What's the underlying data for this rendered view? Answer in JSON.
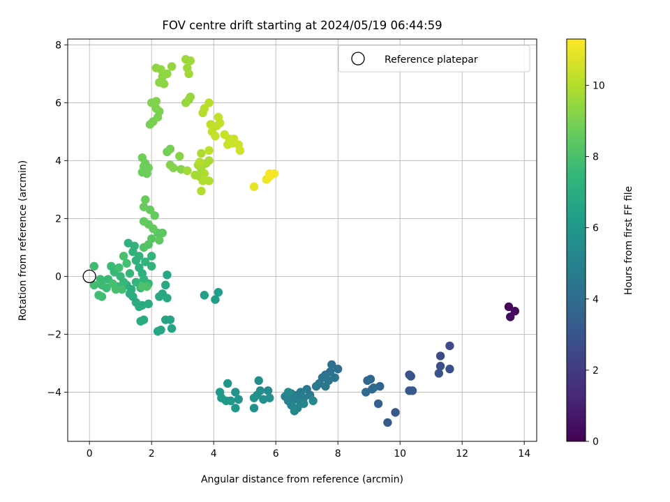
{
  "chart_data": {
    "type": "scatter",
    "title": "FOV centre drift starting at 2024/05/19 06:44:59",
    "xlabel": "Angular distance from reference (arcmin)",
    "ylabel": "Rotation from reference (arcmin)",
    "xlim": [
      -0.7,
      14.4
    ],
    "ylim": [
      -5.7,
      8.2
    ],
    "xticks": [
      0,
      2,
      4,
      6,
      8,
      10,
      12,
      14
    ],
    "yticks": [
      -4,
      -2,
      0,
      2,
      4,
      6,
      8
    ],
    "grid": true,
    "legend": {
      "placement": "top-right",
      "entries": [
        {
          "label": "Reference platepar",
          "marker": "open-circle"
        }
      ]
    },
    "reference_point": {
      "x": 0,
      "y": 0
    },
    "colorbar": {
      "label": "Hours from first FF file",
      "colormap": "viridis",
      "range": [
        0,
        11.3
      ],
      "ticks": [
        0,
        2,
        4,
        6,
        8,
        10
      ]
    },
    "series": [
      {
        "points": [
          {
            "x": 13.5,
            "y": -1.05,
            "t": 0.1
          },
          {
            "x": 13.7,
            "y": -1.2,
            "t": 0.3
          },
          {
            "x": 13.55,
            "y": -1.4,
            "t": 0.4
          },
          {
            "x": 11.6,
            "y": -2.4,
            "t": 2.5
          },
          {
            "x": 11.3,
            "y": -2.75,
            "t": 2.6
          },
          {
            "x": 11.3,
            "y": -3.1,
            "t": 2.7
          },
          {
            "x": 11.6,
            "y": -3.2,
            "t": 2.8
          },
          {
            "x": 11.25,
            "y": -3.35,
            "t": 2.9
          },
          {
            "x": 10.3,
            "y": -3.4,
            "t": 3.0
          },
          {
            "x": 10.35,
            "y": -3.45,
            "t": 3.0
          },
          {
            "x": 10.3,
            "y": -3.95,
            "t": 3.1
          },
          {
            "x": 10.4,
            "y": -3.95,
            "t": 3.15
          },
          {
            "x": 9.85,
            "y": -4.7,
            "t": 3.2
          },
          {
            "x": 9.6,
            "y": -5.05,
            "t": 3.3
          },
          {
            "x": 9.3,
            "y": -4.4,
            "t": 3.4
          },
          {
            "x": 9.35,
            "y": -3.8,
            "t": 3.6
          },
          {
            "x": 9.05,
            "y": -3.55,
            "t": 3.7
          },
          {
            "x": 8.95,
            "y": -3.6,
            "t": 3.75
          },
          {
            "x": 9.15,
            "y": -3.85,
            "t": 3.8
          },
          {
            "x": 8.9,
            "y": -4.0,
            "t": 3.9
          },
          {
            "x": 9.1,
            "y": -3.9,
            "t": 3.9
          },
          {
            "x": 8.0,
            "y": -3.2,
            "t": 4.1
          },
          {
            "x": 7.8,
            "y": -3.05,
            "t": 4.15
          },
          {
            "x": 7.75,
            "y": -3.3,
            "t": 4.2
          },
          {
            "x": 7.6,
            "y": -3.4,
            "t": 4.25
          },
          {
            "x": 7.9,
            "y": -3.5,
            "t": 4.3
          },
          {
            "x": 7.7,
            "y": -3.6,
            "t": 4.35
          },
          {
            "x": 7.5,
            "y": -3.5,
            "t": 4.4
          },
          {
            "x": 7.4,
            "y": -3.7,
            "t": 4.45
          },
          {
            "x": 7.6,
            "y": -3.8,
            "t": 4.5
          },
          {
            "x": 7.3,
            "y": -3.8,
            "t": 4.55
          },
          {
            "x": 7.0,
            "y": -3.9,
            "t": 4.6
          },
          {
            "x": 6.8,
            "y": -4.0,
            "t": 4.65
          },
          {
            "x": 7.1,
            "y": -4.1,
            "t": 4.7
          },
          {
            "x": 6.7,
            "y": -4.1,
            "t": 4.75
          },
          {
            "x": 6.9,
            "y": -4.2,
            "t": 4.8
          },
          {
            "x": 6.5,
            "y": -4.05,
            "t": 4.85
          },
          {
            "x": 6.6,
            "y": -4.25,
            "t": 4.9
          },
          {
            "x": 6.3,
            "y": -4.15,
            "t": 4.95
          },
          {
            "x": 6.4,
            "y": -4.3,
            "t": 5.0
          },
          {
            "x": 6.8,
            "y": -4.35,
            "t": 5.05
          },
          {
            "x": 6.5,
            "y": -4.45,
            "t": 5.1
          },
          {
            "x": 6.9,
            "y": -4.4,
            "t": 5.15
          },
          {
            "x": 6.7,
            "y": -4.55,
            "t": 5.2
          },
          {
            "x": 6.6,
            "y": -4.65,
            "t": 5.25
          },
          {
            "x": 7.2,
            "y": -4.3,
            "t": 5.3
          },
          {
            "x": 6.4,
            "y": -4.0,
            "t": 5.35
          },
          {
            "x": 5.75,
            "y": -3.95,
            "t": 5.4
          },
          {
            "x": 5.5,
            "y": -3.95,
            "t": 5.45
          },
          {
            "x": 5.45,
            "y": -3.6,
            "t": 5.5
          },
          {
            "x": 5.4,
            "y": -4.1,
            "t": 5.55
          },
          {
            "x": 5.6,
            "y": -4.25,
            "t": 5.6
          },
          {
            "x": 5.8,
            "y": -4.2,
            "t": 5.65
          },
          {
            "x": 5.3,
            "y": -4.55,
            "t": 5.7
          },
          {
            "x": 5.3,
            "y": -4.2,
            "t": 5.75
          },
          {
            "x": 4.8,
            "y": -4.25,
            "t": 5.8
          },
          {
            "x": 4.7,
            "y": -4.0,
            "t": 5.85
          },
          {
            "x": 4.45,
            "y": -3.7,
            "t": 5.9
          },
          {
            "x": 4.55,
            "y": -4.3,
            "t": 5.95
          },
          {
            "x": 4.7,
            "y": -4.55,
            "t": 6.0
          },
          {
            "x": 4.4,
            "y": -4.3,
            "t": 6.05
          },
          {
            "x": 4.2,
            "y": -4.0,
            "t": 6.1
          },
          {
            "x": 4.25,
            "y": -4.2,
            "t": 6.15
          },
          {
            "x": 4.15,
            "y": -0.55,
            "t": 6.3
          },
          {
            "x": 4.05,
            "y": -0.8,
            "t": 6.35
          },
          {
            "x": 3.7,
            "y": -0.65,
            "t": 6.4
          },
          {
            "x": 2.6,
            "y": -1.5,
            "t": 6.6
          },
          {
            "x": 2.65,
            "y": -1.8,
            "t": 6.62
          },
          {
            "x": 2.45,
            "y": -1.5,
            "t": 6.65
          },
          {
            "x": 2.3,
            "y": -1.85,
            "t": 6.68
          },
          {
            "x": 2.2,
            "y": -1.9,
            "t": 6.7
          },
          {
            "x": 2.5,
            "y": 0.05,
            "t": 6.75
          },
          {
            "x": 2.45,
            "y": -0.3,
            "t": 6.78
          },
          {
            "x": 2.35,
            "y": -0.6,
            "t": 6.8
          },
          {
            "x": 2.25,
            "y": -0.7,
            "t": 6.83
          },
          {
            "x": 2.5,
            "y": -0.75,
            "t": 6.85
          },
          {
            "x": 1.9,
            "y": -0.95,
            "t": 6.9
          },
          {
            "x": 1.7,
            "y": -1.0,
            "t": 6.92
          },
          {
            "x": 1.6,
            "y": -1.05,
            "t": 6.95
          },
          {
            "x": 1.75,
            "y": -1.5,
            "t": 6.97
          },
          {
            "x": 1.65,
            "y": -1.55,
            "t": 7.0
          },
          {
            "x": 1.4,
            "y": -0.7,
            "t": 7.02
          },
          {
            "x": 1.5,
            "y": -0.9,
            "t": 7.05
          },
          {
            "x": 1.3,
            "y": -0.6,
            "t": 7.08
          },
          {
            "x": 1.35,
            "y": -0.45,
            "t": 7.1
          },
          {
            "x": 1.2,
            "y": -0.3,
            "t": 7.12
          },
          {
            "x": 1.6,
            "y": 0.3,
            "t": 7.15
          },
          {
            "x": 1.7,
            "y": 0.1,
            "t": 7.18
          },
          {
            "x": 1.5,
            "y": 0.55,
            "t": 7.2
          },
          {
            "x": 1.4,
            "y": 0.85,
            "t": 7.22
          },
          {
            "x": 1.25,
            "y": 1.15,
            "t": 7.25
          },
          {
            "x": 1.45,
            "y": 1.05,
            "t": 7.28
          },
          {
            "x": 1.6,
            "y": 0.7,
            "t": 7.3
          },
          {
            "x": 1.8,
            "y": 0.5,
            "t": 7.32
          },
          {
            "x": 2.0,
            "y": 0.35,
            "t": 7.35
          },
          {
            "x": 2.0,
            "y": 0.7,
            "t": 7.38
          },
          {
            "x": 1.75,
            "y": -0.1,
            "t": 7.4
          },
          {
            "x": 1.9,
            "y": -0.25,
            "t": 7.42
          },
          {
            "x": 1.65,
            "y": -0.4,
            "t": 7.45
          },
          {
            "x": 1.5,
            "y": -0.2,
            "t": 7.48
          },
          {
            "x": 1.3,
            "y": 0.1,
            "t": 7.5
          },
          {
            "x": 1.1,
            "y": -0.2,
            "t": 7.52
          },
          {
            "x": 1.0,
            "y": 0.0,
            "t": 7.55
          },
          {
            "x": 0.9,
            "y": -0.35,
            "t": 7.58
          },
          {
            "x": 0.8,
            "y": 0.15,
            "t": 7.6
          },
          {
            "x": 0.7,
            "y": 0.35,
            "t": 7.62
          },
          {
            "x": 0.6,
            "y": -0.1,
            "t": 7.65
          },
          {
            "x": 0.55,
            "y": -0.4,
            "t": 7.68
          },
          {
            "x": 0.4,
            "y": -0.3,
            "t": 7.7
          },
          {
            "x": 0.35,
            "y": -0.1,
            "t": 7.72
          },
          {
            "x": 0.15,
            "y": 0.35,
            "t": 7.75
          },
          {
            "x": 0.15,
            "y": -0.3,
            "t": 7.78
          },
          {
            "x": 0.3,
            "y": -0.65,
            "t": 7.8
          },
          {
            "x": 0.4,
            "y": -0.7,
            "t": 7.82
          },
          {
            "x": 0.95,
            "y": 0.3,
            "t": 7.85
          },
          {
            "x": 1.05,
            "y": -0.45,
            "t": 7.88
          },
          {
            "x": 0.75,
            "y": -0.25,
            "t": 7.9
          },
          {
            "x": 1.2,
            "y": 0.45,
            "t": 7.92
          },
          {
            "x": 0.85,
            "y": -0.45,
            "t": 7.95
          },
          {
            "x": 1.1,
            "y": 0.7,
            "t": 7.98
          },
          {
            "x": 1.85,
            "y": -0.35,
            "t": 8.05
          },
          {
            "x": 1.7,
            "y": -0.35,
            "t": 8.1
          },
          {
            "x": 1.75,
            "y": 1.0,
            "t": 8.15
          },
          {
            "x": 1.9,
            "y": 1.1,
            "t": 8.2
          },
          {
            "x": 2.0,
            "y": 1.3,
            "t": 8.3
          },
          {
            "x": 2.2,
            "y": 1.5,
            "t": 8.35
          },
          {
            "x": 2.35,
            "y": 1.5,
            "t": 8.4
          },
          {
            "x": 2.25,
            "y": 1.25,
            "t": 8.45
          },
          {
            "x": 2.05,
            "y": 1.65,
            "t": 8.5
          },
          {
            "x": 1.9,
            "y": 1.8,
            "t": 8.52
          },
          {
            "x": 1.75,
            "y": 1.9,
            "t": 8.55
          },
          {
            "x": 2.1,
            "y": 2.1,
            "t": 8.58
          },
          {
            "x": 1.95,
            "y": 2.3,
            "t": 8.6
          },
          {
            "x": 1.75,
            "y": 2.4,
            "t": 8.62
          },
          {
            "x": 1.8,
            "y": 2.65,
            "t": 8.65
          },
          {
            "x": 1.85,
            "y": 3.55,
            "t": 8.7
          },
          {
            "x": 1.7,
            "y": 3.6,
            "t": 8.72
          },
          {
            "x": 1.75,
            "y": 3.8,
            "t": 8.74
          },
          {
            "x": 1.8,
            "y": 3.9,
            "t": 8.76
          },
          {
            "x": 1.7,
            "y": 4.1,
            "t": 8.78
          },
          {
            "x": 1.9,
            "y": 3.75,
            "t": 8.8
          },
          {
            "x": 2.5,
            "y": 4.3,
            "t": 8.85
          },
          {
            "x": 2.6,
            "y": 4.4,
            "t": 8.9
          },
          {
            "x": 1.95,
            "y": 5.25,
            "t": 8.95
          },
          {
            "x": 2.05,
            "y": 5.35,
            "t": 8.97
          },
          {
            "x": 2.2,
            "y": 5.5,
            "t": 9.0
          },
          {
            "x": 2.25,
            "y": 5.7,
            "t": 9.02
          },
          {
            "x": 2.15,
            "y": 5.8,
            "t": 9.05
          },
          {
            "x": 2.0,
            "y": 6.0,
            "t": 9.08
          },
          {
            "x": 2.15,
            "y": 6.05,
            "t": 9.1
          },
          {
            "x": 2.6,
            "y": 3.85,
            "t": 9.15
          },
          {
            "x": 2.7,
            "y": 3.75,
            "t": 9.18
          },
          {
            "x": 2.95,
            "y": 3.7,
            "t": 9.2
          },
          {
            "x": 2.9,
            "y": 4.15,
            "t": 9.22
          },
          {
            "x": 2.25,
            "y": 6.7,
            "t": 9.3
          },
          {
            "x": 2.4,
            "y": 6.65,
            "t": 9.32
          },
          {
            "x": 2.35,
            "y": 6.9,
            "t": 9.35
          },
          {
            "x": 2.5,
            "y": 7.0,
            "t": 9.38
          },
          {
            "x": 2.15,
            "y": 7.2,
            "t": 9.4
          },
          {
            "x": 2.3,
            "y": 7.15,
            "t": 9.42
          },
          {
            "x": 2.65,
            "y": 7.25,
            "t": 9.45
          },
          {
            "x": 3.1,
            "y": 6.0,
            "t": 9.5
          },
          {
            "x": 3.25,
            "y": 6.2,
            "t": 9.52
          },
          {
            "x": 3.2,
            "y": 6.1,
            "t": 9.55
          },
          {
            "x": 3.1,
            "y": 7.5,
            "t": 9.6
          },
          {
            "x": 3.25,
            "y": 7.45,
            "t": 9.62
          },
          {
            "x": 3.15,
            "y": 7.2,
            "t": 9.65
          },
          {
            "x": 3.2,
            "y": 7.0,
            "t": 9.68
          },
          {
            "x": 3.15,
            "y": 3.65,
            "t": 9.7
          },
          {
            "x": 3.4,
            "y": 3.5,
            "t": 9.72
          },
          {
            "x": 3.55,
            "y": 3.45,
            "t": 9.75
          },
          {
            "x": 3.6,
            "y": 3.7,
            "t": 9.78
          },
          {
            "x": 3.5,
            "y": 3.85,
            "t": 9.8
          },
          {
            "x": 3.75,
            "y": 3.9,
            "t": 9.82
          },
          {
            "x": 3.85,
            "y": 4.0,
            "t": 9.85
          },
          {
            "x": 3.6,
            "y": 4.25,
            "t": 9.88
          },
          {
            "x": 3.7,
            "y": 3.55,
            "t": 9.9
          },
          {
            "x": 3.85,
            "y": 3.3,
            "t": 9.92
          },
          {
            "x": 3.65,
            "y": 3.3,
            "t": 9.95
          },
          {
            "x": 3.6,
            "y": 2.95,
            "t": 9.98
          },
          {
            "x": 3.55,
            "y": 3.95,
            "t": 10.0
          },
          {
            "x": 3.65,
            "y": 5.65,
            "t": 10.05
          },
          {
            "x": 3.7,
            "y": 5.8,
            "t": 10.08
          },
          {
            "x": 3.85,
            "y": 6.0,
            "t": 10.1
          },
          {
            "x": 3.85,
            "y": 4.35,
            "t": 10.15
          },
          {
            "x": 3.9,
            "y": 5.25,
            "t": 10.2
          },
          {
            "x": 3.95,
            "y": 5.0,
            "t": 10.22
          },
          {
            "x": 4.1,
            "y": 5.2,
            "t": 10.25
          },
          {
            "x": 4.05,
            "y": 4.85,
            "t": 10.28
          },
          {
            "x": 4.15,
            "y": 5.5,
            "t": 10.3
          },
          {
            "x": 4.2,
            "y": 5.3,
            "t": 10.32
          },
          {
            "x": 4.35,
            "y": 4.9,
            "t": 10.35
          },
          {
            "x": 4.5,
            "y": 4.75,
            "t": 10.38
          },
          {
            "x": 4.45,
            "y": 4.55,
            "t": 10.4
          },
          {
            "x": 4.6,
            "y": 4.6,
            "t": 10.42
          },
          {
            "x": 4.65,
            "y": 4.75,
            "t": 10.45
          },
          {
            "x": 4.8,
            "y": 4.55,
            "t": 10.48
          },
          {
            "x": 4.85,
            "y": 4.35,
            "t": 10.5
          },
          {
            "x": 5.3,
            "y": 3.1,
            "t": 10.9
          },
          {
            "x": 5.7,
            "y": 3.35,
            "t": 11.0
          },
          {
            "x": 5.8,
            "y": 3.45,
            "t": 11.1
          },
          {
            "x": 5.95,
            "y": 3.55,
            "t": 11.15
          },
          {
            "x": 5.8,
            "y": 3.55,
            "t": 11.2
          }
        ]
      }
    ]
  }
}
